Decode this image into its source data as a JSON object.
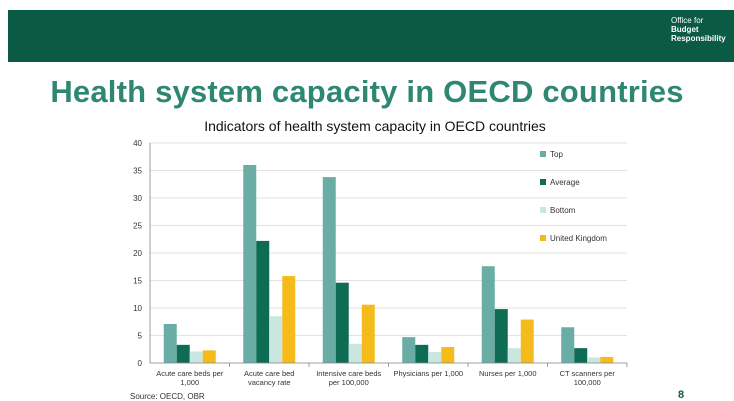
{
  "header": {
    "logo_lines": [
      "Office for",
      "Budget",
      "Responsibility"
    ],
    "brand_color": "#0b5a43",
    "accent_color": "#8dc63f"
  },
  "slide": {
    "title": "Health system capacity in OECD countries",
    "source": "Source: OECD, OBR",
    "page_number": "8"
  },
  "chart_data": {
    "type": "bar",
    "title": "Indicators of health system capacity in OECD countries",
    "xlabel": "",
    "ylabel": "",
    "ylim": [
      0,
      40
    ],
    "yticks": [
      0,
      5,
      10,
      15,
      20,
      25,
      30,
      35,
      40
    ],
    "grid": true,
    "legend_position": "right",
    "categories": [
      "Acute care beds per 1,000",
      "Acute care bed vacancy rate",
      "Intensive care beds per 100,000",
      "Physicians per 1,000",
      "Nurses per 1,000",
      "CT scanners per 100,000"
    ],
    "series": [
      {
        "name": "Top",
        "color": "#6aada5",
        "values": [
          7.1,
          36.0,
          33.8,
          4.7,
          17.6,
          6.5
        ]
      },
      {
        "name": "Average",
        "color": "#0e6b54",
        "values": [
          3.3,
          22.2,
          14.6,
          3.3,
          9.8,
          2.7
        ]
      },
      {
        "name": "Bottom",
        "color": "#c9e6df",
        "values": [
          2.1,
          8.5,
          3.5,
          2.0,
          2.7,
          1.0
        ]
      },
      {
        "name": "United Kingdom",
        "color": "#f4bb1a",
        "values": [
          2.3,
          15.8,
          10.6,
          2.9,
          7.9,
          1.1
        ]
      }
    ]
  }
}
